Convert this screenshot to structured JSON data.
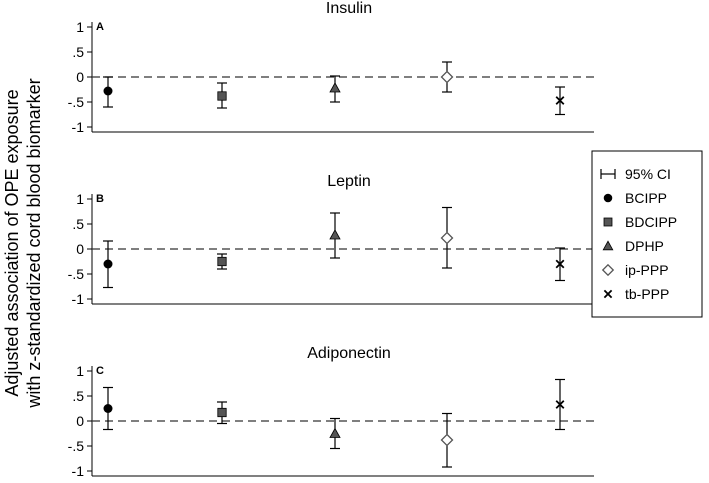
{
  "chart_data": {
    "type": "scatter",
    "ylabel_lines": [
      "Adjusted association of OPE exposure",
      "with z-standardized cord blood biomarker"
    ],
    "yticks": [
      1,
      0.5,
      0,
      -0.5,
      -1
    ],
    "ytick_labels": [
      "1",
      ".5",
      "0",
      "-.5",
      "-1"
    ],
    "ylim": [
      -1.1,
      1.1
    ],
    "series_names": [
      "BCIPP",
      "BDCIPP",
      "DPHP",
      "ip-PPP",
      "tb-PPP"
    ],
    "legend": {
      "position": "right",
      "items": [
        {
          "label": "95% CI",
          "marker": "ci-bar"
        },
        {
          "label": "BCIPP",
          "marker": "circle"
        },
        {
          "label": "BDCIPP",
          "marker": "square"
        },
        {
          "label": "DPHP",
          "marker": "triangle"
        },
        {
          "label": "ip-PPP",
          "marker": "diamond"
        },
        {
          "label": "tb-PPP",
          "marker": "x"
        }
      ]
    },
    "panels": [
      {
        "label": "A",
        "title": "Insulin",
        "estimates": [
          -0.28,
          -0.38,
          -0.22,
          0.0,
          -0.47
        ],
        "ci_lower": [
          -0.6,
          -0.62,
          -0.5,
          -0.3,
          -0.75
        ],
        "ci_upper": [
          0.0,
          -0.12,
          0.02,
          0.3,
          -0.2
        ]
      },
      {
        "label": "B",
        "title": "Leptin",
        "estimates": [
          -0.3,
          -0.25,
          0.28,
          0.22,
          -0.3
        ],
        "ci_lower": [
          -0.77,
          -0.4,
          -0.18,
          -0.38,
          -0.63
        ],
        "ci_upper": [
          0.16,
          -0.1,
          0.72,
          0.83,
          0.02
        ]
      },
      {
        "label": "C",
        "title": "Adiponectin",
        "estimates": [
          0.25,
          0.17,
          -0.25,
          -0.38,
          0.33
        ],
        "ci_lower": [
          -0.17,
          -0.05,
          -0.55,
          -0.92,
          -0.17
        ],
        "ci_upper": [
          0.67,
          0.38,
          0.05,
          0.15,
          0.83
        ]
      }
    ]
  },
  "colors": {
    "axis": "#000000",
    "zero_line": "#333333",
    "marker": "#000000",
    "square_fill": "#555555",
    "triangle_fill": "#555555",
    "diamond_fill": "#ffffff"
  }
}
